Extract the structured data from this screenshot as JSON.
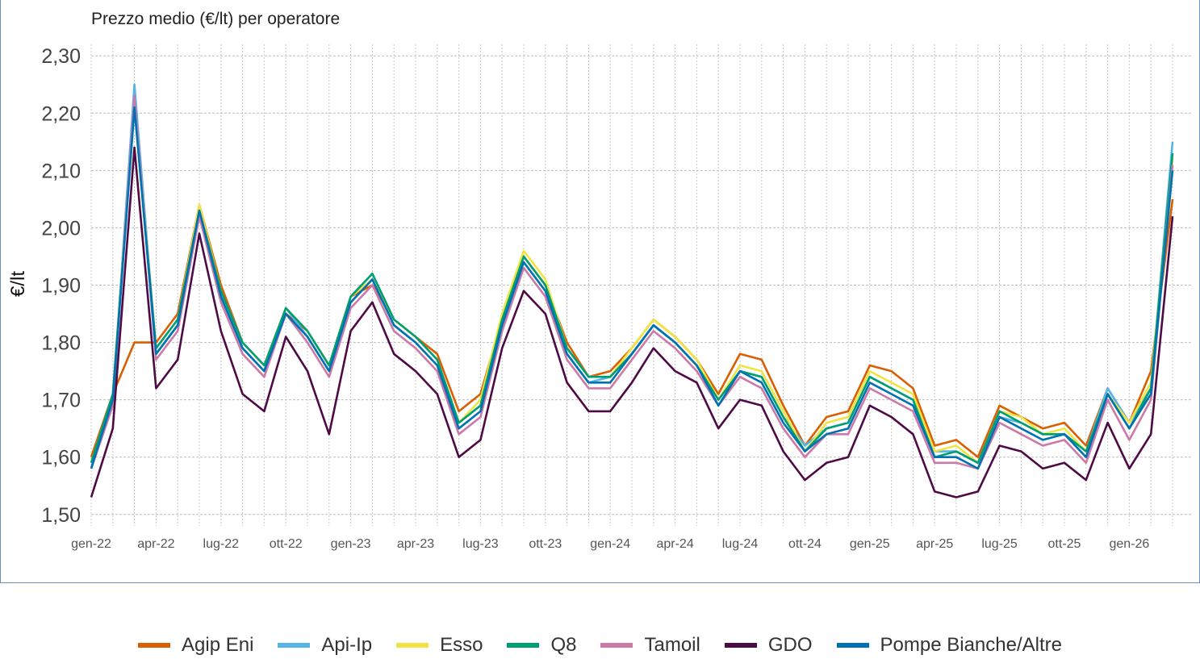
{
  "chart_data": {
    "type": "line",
    "subtitle": "Prezzo medio (€/lt) per operatore",
    "ylabel": "€/lt",
    "xlabel": "",
    "ylim": [
      1.48,
      2.32
    ],
    "y_ticks": [
      "2,30",
      "2,20",
      "2,10",
      "2,00",
      "1,90",
      "1,80",
      "1,70",
      "1,60",
      "1,50"
    ],
    "y_tick_values": [
      2.3,
      2.2,
      2.1,
      2.0,
      1.9,
      1.8,
      1.7,
      1.6,
      1.5
    ],
    "x_ticks": [
      "gen-22",
      "apr-22",
      "lug-22",
      "ott-22",
      "gen-23",
      "apr-23",
      "lug-23",
      "ott-23",
      "gen-24",
      "apr-24",
      "lug-24",
      "ott-24",
      "gen-25",
      "apr-25",
      "lug-25",
      "ott-25",
      "gen-26"
    ],
    "grid": true,
    "legend_position": "bottom",
    "x": [
      "2022-01",
      "2022-02",
      "2022-03",
      "2022-04",
      "2022-05",
      "2022-06",
      "2022-07",
      "2022-08",
      "2022-09",
      "2022-10",
      "2022-11",
      "2022-12",
      "2023-01",
      "2023-02",
      "2023-03",
      "2023-04",
      "2023-05",
      "2023-06",
      "2023-07",
      "2023-08",
      "2023-09",
      "2023-10",
      "2023-11",
      "2023-12",
      "2024-01",
      "2024-02",
      "2024-03",
      "2024-04",
      "2024-05",
      "2024-06",
      "2024-07",
      "2024-08",
      "2024-09",
      "2024-10",
      "2024-11",
      "2024-12",
      "2025-01",
      "2025-02",
      "2025-03",
      "2025-04",
      "2025-05",
      "2025-06",
      "2025-07",
      "2025-08",
      "2025-09",
      "2025-10",
      "2025-11",
      "2025-12",
      "2026-01",
      "2026-02",
      "2026-03"
    ],
    "series": [
      {
        "name": "Agip Eni",
        "color": "#d95f02",
        "values": [
          1.6,
          1.71,
          1.8,
          1.8,
          1.85,
          2.04,
          1.9,
          1.8,
          1.76,
          1.85,
          1.82,
          1.76,
          1.88,
          1.9,
          1.84,
          1.81,
          1.78,
          1.68,
          1.71,
          1.84,
          1.95,
          1.9,
          1.8,
          1.74,
          1.75,
          1.79,
          1.84,
          1.81,
          1.77,
          1.71,
          1.78,
          1.77,
          1.69,
          1.62,
          1.67,
          1.68,
          1.76,
          1.75,
          1.72,
          1.62,
          1.63,
          1.6,
          1.69,
          1.67,
          1.65,
          1.66,
          1.62,
          1.72,
          1.66,
          1.75,
          2.05
        ]
      },
      {
        "name": "Api-Ip",
        "color": "#56b4e9",
        "values": [
          1.58,
          1.7,
          2.25,
          1.78,
          1.83,
          2.03,
          1.88,
          1.79,
          1.75,
          1.86,
          1.81,
          1.75,
          1.87,
          1.91,
          1.83,
          1.8,
          1.76,
          1.66,
          1.69,
          1.83,
          1.94,
          1.89,
          1.78,
          1.73,
          1.74,
          1.78,
          1.83,
          1.8,
          1.76,
          1.7,
          1.75,
          1.74,
          1.67,
          1.62,
          1.65,
          1.66,
          1.74,
          1.72,
          1.7,
          1.61,
          1.61,
          1.59,
          1.67,
          1.66,
          1.64,
          1.64,
          1.61,
          1.72,
          1.66,
          1.72,
          2.15
        ]
      },
      {
        "name": "Esso",
        "color": "#f0e442",
        "values": [
          1.59,
          1.71,
          2.22,
          1.79,
          1.84,
          2.04,
          1.89,
          1.8,
          1.76,
          1.86,
          1.82,
          1.76,
          1.88,
          1.91,
          1.84,
          1.81,
          1.77,
          1.66,
          1.7,
          1.85,
          1.96,
          1.91,
          1.79,
          1.74,
          1.74,
          1.79,
          1.84,
          1.81,
          1.77,
          1.7,
          1.76,
          1.75,
          1.68,
          1.61,
          1.66,
          1.67,
          1.75,
          1.73,
          1.71,
          1.61,
          1.62,
          1.59,
          1.68,
          1.67,
          1.64,
          1.65,
          1.61,
          1.71,
          1.66,
          1.73,
          2.12
        ]
      },
      {
        "name": "Q8",
        "color": "#009e73",
        "values": [
          1.59,
          1.71,
          2.21,
          1.79,
          1.84,
          2.03,
          1.89,
          1.8,
          1.76,
          1.86,
          1.82,
          1.76,
          1.88,
          1.92,
          1.84,
          1.81,
          1.77,
          1.66,
          1.69,
          1.84,
          1.95,
          1.9,
          1.79,
          1.74,
          1.74,
          1.78,
          1.83,
          1.8,
          1.76,
          1.7,
          1.75,
          1.74,
          1.67,
          1.61,
          1.65,
          1.66,
          1.74,
          1.72,
          1.7,
          1.6,
          1.61,
          1.59,
          1.68,
          1.66,
          1.64,
          1.64,
          1.61,
          1.71,
          1.65,
          1.72,
          2.13
        ]
      },
      {
        "name": "Tamoil",
        "color": "#cc79a7",
        "values": [
          1.58,
          1.69,
          2.23,
          1.77,
          1.82,
          2.02,
          1.87,
          1.78,
          1.74,
          1.85,
          1.8,
          1.74,
          1.86,
          1.9,
          1.82,
          1.79,
          1.75,
          1.64,
          1.67,
          1.82,
          1.93,
          1.88,
          1.77,
          1.72,
          1.72,
          1.77,
          1.82,
          1.79,
          1.75,
          1.69,
          1.74,
          1.72,
          1.65,
          1.6,
          1.64,
          1.64,
          1.72,
          1.7,
          1.68,
          1.59,
          1.59,
          1.58,
          1.66,
          1.64,
          1.62,
          1.63,
          1.59,
          1.7,
          1.63,
          1.7,
          2.11
        ]
      },
      {
        "name": "GDO",
        "color": "#4d0a45",
        "values": [
          1.53,
          1.65,
          2.14,
          1.72,
          1.77,
          1.99,
          1.82,
          1.71,
          1.68,
          1.81,
          1.75,
          1.64,
          1.82,
          1.87,
          1.78,
          1.75,
          1.71,
          1.6,
          1.63,
          1.79,
          1.89,
          1.85,
          1.73,
          1.68,
          1.68,
          1.73,
          1.79,
          1.75,
          1.73,
          1.65,
          1.7,
          1.69,
          1.61,
          1.56,
          1.59,
          1.6,
          1.69,
          1.67,
          1.64,
          1.54,
          1.53,
          1.54,
          1.62,
          1.61,
          1.58,
          1.59,
          1.56,
          1.66,
          1.58,
          1.64,
          2.02
        ]
      },
      {
        "name": "Pompe Bianche/Altre",
        "color": "#0072b2",
        "values": [
          1.58,
          1.7,
          2.21,
          1.78,
          1.83,
          2.03,
          1.88,
          1.79,
          1.75,
          1.85,
          1.81,
          1.75,
          1.87,
          1.91,
          1.83,
          1.8,
          1.76,
          1.65,
          1.68,
          1.83,
          1.94,
          1.89,
          1.78,
          1.73,
          1.73,
          1.78,
          1.83,
          1.8,
          1.76,
          1.69,
          1.75,
          1.73,
          1.66,
          1.61,
          1.64,
          1.65,
          1.73,
          1.71,
          1.69,
          1.6,
          1.6,
          1.58,
          1.67,
          1.65,
          1.63,
          1.64,
          1.6,
          1.71,
          1.65,
          1.71,
          2.1
        ]
      }
    ]
  }
}
